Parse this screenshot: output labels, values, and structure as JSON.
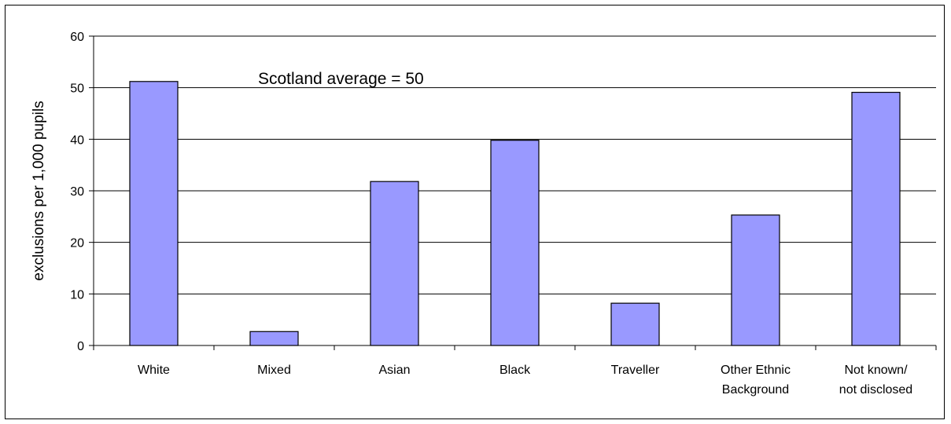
{
  "chart_data": {
    "type": "bar",
    "categories": [
      [
        "White"
      ],
      [
        "Mixed"
      ],
      [
        "Asian"
      ],
      [
        "Black"
      ],
      [
        "Traveller"
      ],
      [
        "Other Ethnic",
        "Background"
      ],
      [
        "Not known/",
        "not disclosed"
      ]
    ],
    "values": [
      51.2,
      2.7,
      31.8,
      39.8,
      8.2,
      25.3,
      49.1
    ],
    "ylabel": "exclusions per 1,000 pupils",
    "xlabel": "",
    "ylim": [
      0,
      60
    ],
    "yticks": [
      0,
      10,
      20,
      30,
      40,
      50,
      60
    ],
    "grid": true,
    "annotation": "Scotland average = 50",
    "colors": {
      "bar_fill": "#9999ff",
      "bar_stroke": "#000000",
      "grid": "#000000"
    }
  }
}
